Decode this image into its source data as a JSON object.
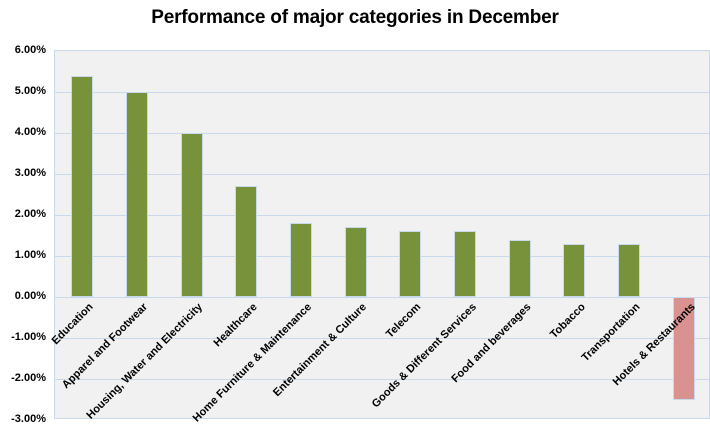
{
  "title": "Performance of major categories in December",
  "chart_data": {
    "type": "bar",
    "title": "Performance of major categories in December",
    "categories": [
      "Education",
      "Apparel and Footwear",
      "Housing, Water and Electricity",
      "Healthcare",
      "Home Furniture & Maintenance",
      "Entertainment & Culture",
      "Telecom",
      "Goods & Different Services",
      "Food and beverages",
      "Tobacco",
      "Transportation",
      "Hotels & Restaurants"
    ],
    "values": [
      5.4,
      5.0,
      4.0,
      2.7,
      1.8,
      1.7,
      1.6,
      1.6,
      1.4,
      1.3,
      1.3,
      -2.5
    ],
    "value_unit": "%",
    "xlabel": "",
    "ylabel": "",
    "ylim": [
      -3,
      6
    ],
    "y_tick_step": 1,
    "y_ticks": [
      "6.00%",
      "5.00%",
      "4.00%",
      "3.00%",
      "2.00%",
      "1.00%",
      "0.00%",
      "-1.00%",
      "-2.00%",
      "-3.00%"
    ],
    "grid": true,
    "legend": "none",
    "x_label_rotation_deg": -45,
    "colors": {
      "positive_bar": "#78923c",
      "negative_bar": "#d9928f",
      "bar_border": "#c9d9ec",
      "gridline": "#c9d9ec",
      "plot_background": "#f1f1f1",
      "chart_background": "#ffffff",
      "text": "#000000"
    }
  }
}
